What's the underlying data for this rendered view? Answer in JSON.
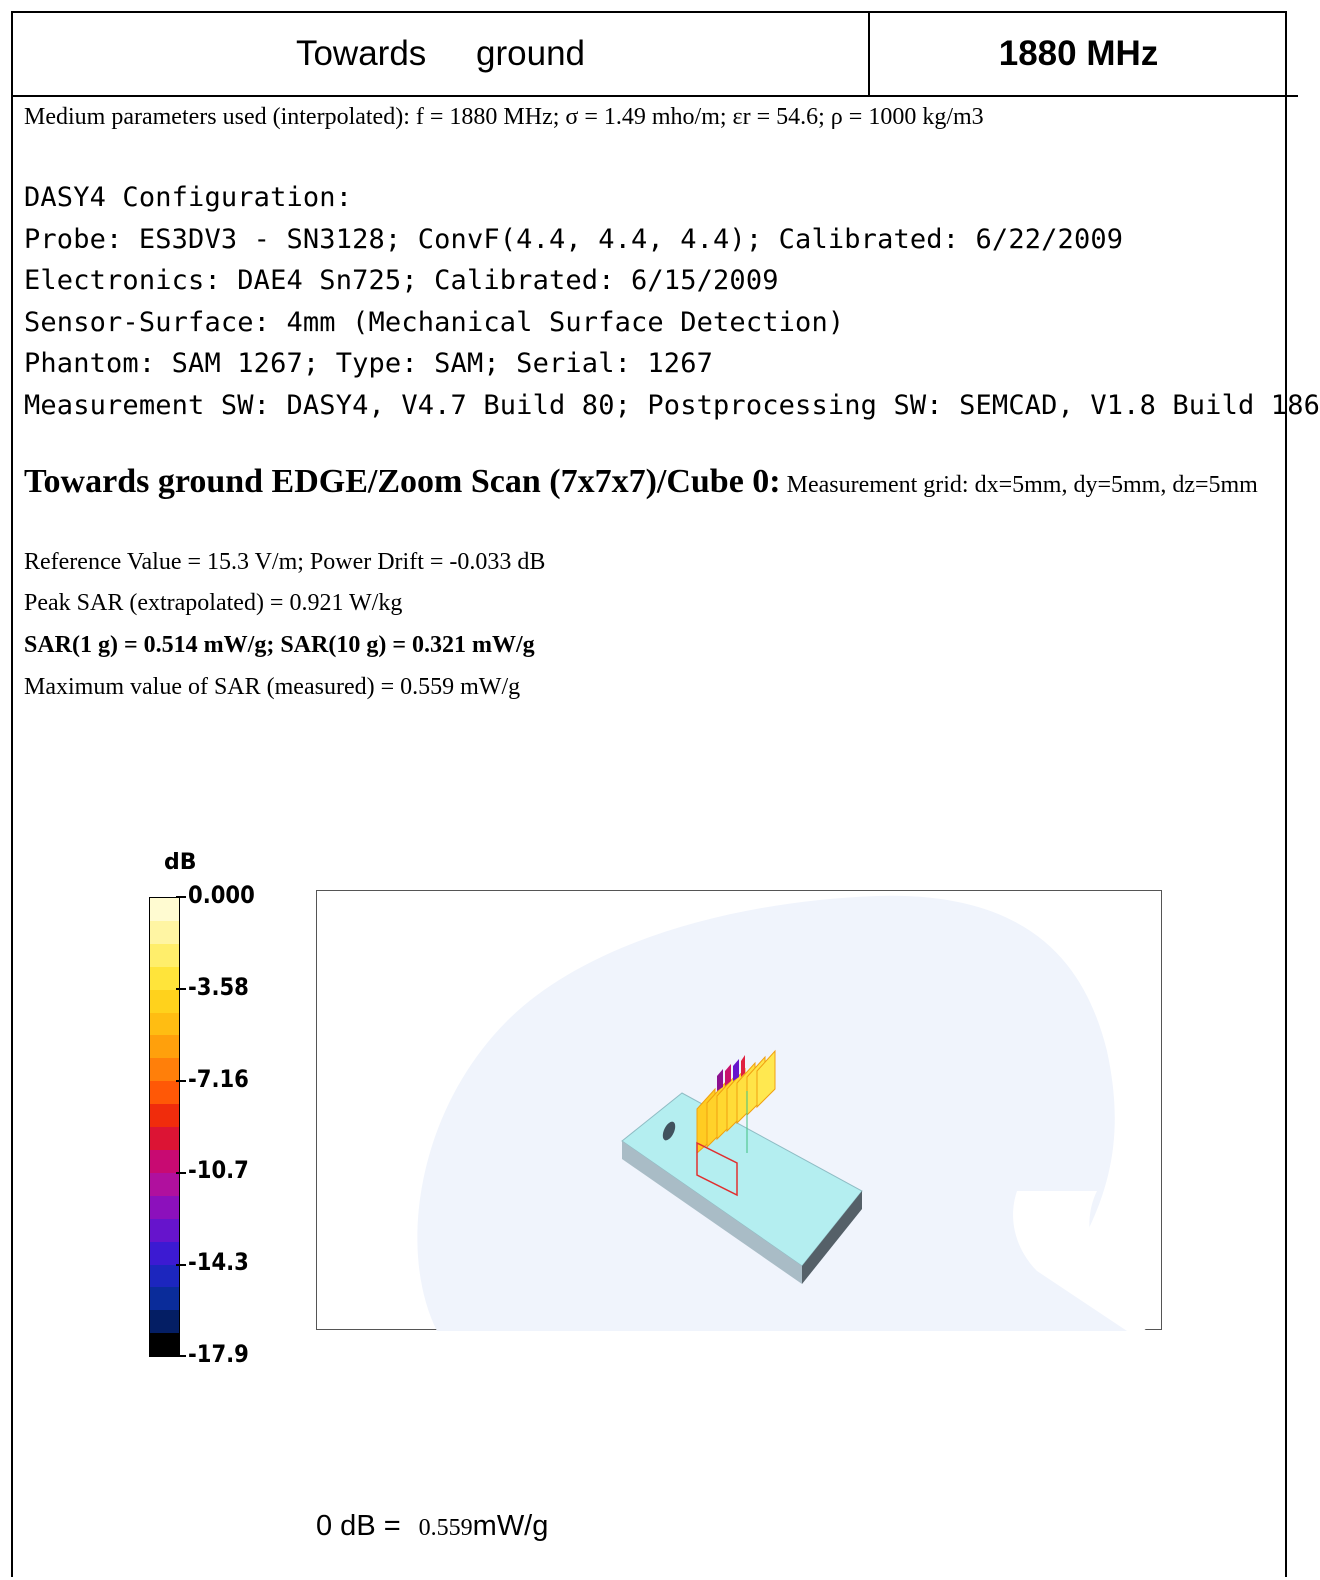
{
  "header": {
    "title": "Towards ground",
    "frequency": "1880 MHz"
  },
  "medium": "Medium parameters used (interpolated): f = 1880 MHz; σ = 1.49 mho/m; εr = 54.6; ρ = 1000 kg/m3",
  "configuration": {
    "title": "DASY4 Configuration:",
    "probe": "Probe: ES3DV3 - SN3128; ConvF(4.4, 4.4, 4.4); Calibrated: 6/22/2009",
    "electronics": "Electronics: DAE4 Sn725; Calibrated: 6/15/2009",
    "sensor": "Sensor-Surface: 4mm (Mechanical Surface Detection)",
    "phantom": "Phantom: SAM 1267; Type: SAM; Serial: 1267",
    "software": "Measurement SW: DASY4, V4.7 Build 80; Postprocessing SW: SEMCAD, V1.8 Build 186"
  },
  "scan": {
    "title": "Towards ground EDGE/Zoom Scan (7x7x7)/Cube 0:",
    "grid": "Measurement grid: dx=5mm, dy=5mm, dz=5mm",
    "reference": "Reference Value = 15.3 V/m; Power Drift = -0.033 dB",
    "peak": "Peak SAR (extrapolated) = 0.921 W/kg",
    "sar": "SAR(1 g) = 0.514 mW/g; SAR(10 g) = 0.321 mW/g",
    "max": "Maximum value of SAR (measured) = 0.559 mW/g"
  },
  "colorbar": {
    "unit": "dB",
    "labels": [
      "0.000",
      "-3.58",
      "-7.16",
      "-10.7",
      "-14.3",
      "-17.9"
    ],
    "colors": [
      "#fffbd1",
      "#fff5a3",
      "#ffee6b",
      "#ffe43a",
      "#ffd21c",
      "#ffbd12",
      "#ffa00c",
      "#ff7f0a",
      "#ff5806",
      "#f02c0c",
      "#dc1434",
      "#c80a72",
      "#b0109e",
      "#8c10bc",
      "#6614cc",
      "#3c1ad2",
      "#1c26be",
      "#0a2c9a",
      "#041e64",
      "#000000"
    ]
  },
  "reference_line": {
    "label": "0 dB =",
    "value": "0.559",
    "unit": "mW/g"
  },
  "colors": {
    "phantom_fill": "#f0f4fc",
    "device_top": "#b4eef0",
    "device_side": "#7a8a94"
  }
}
